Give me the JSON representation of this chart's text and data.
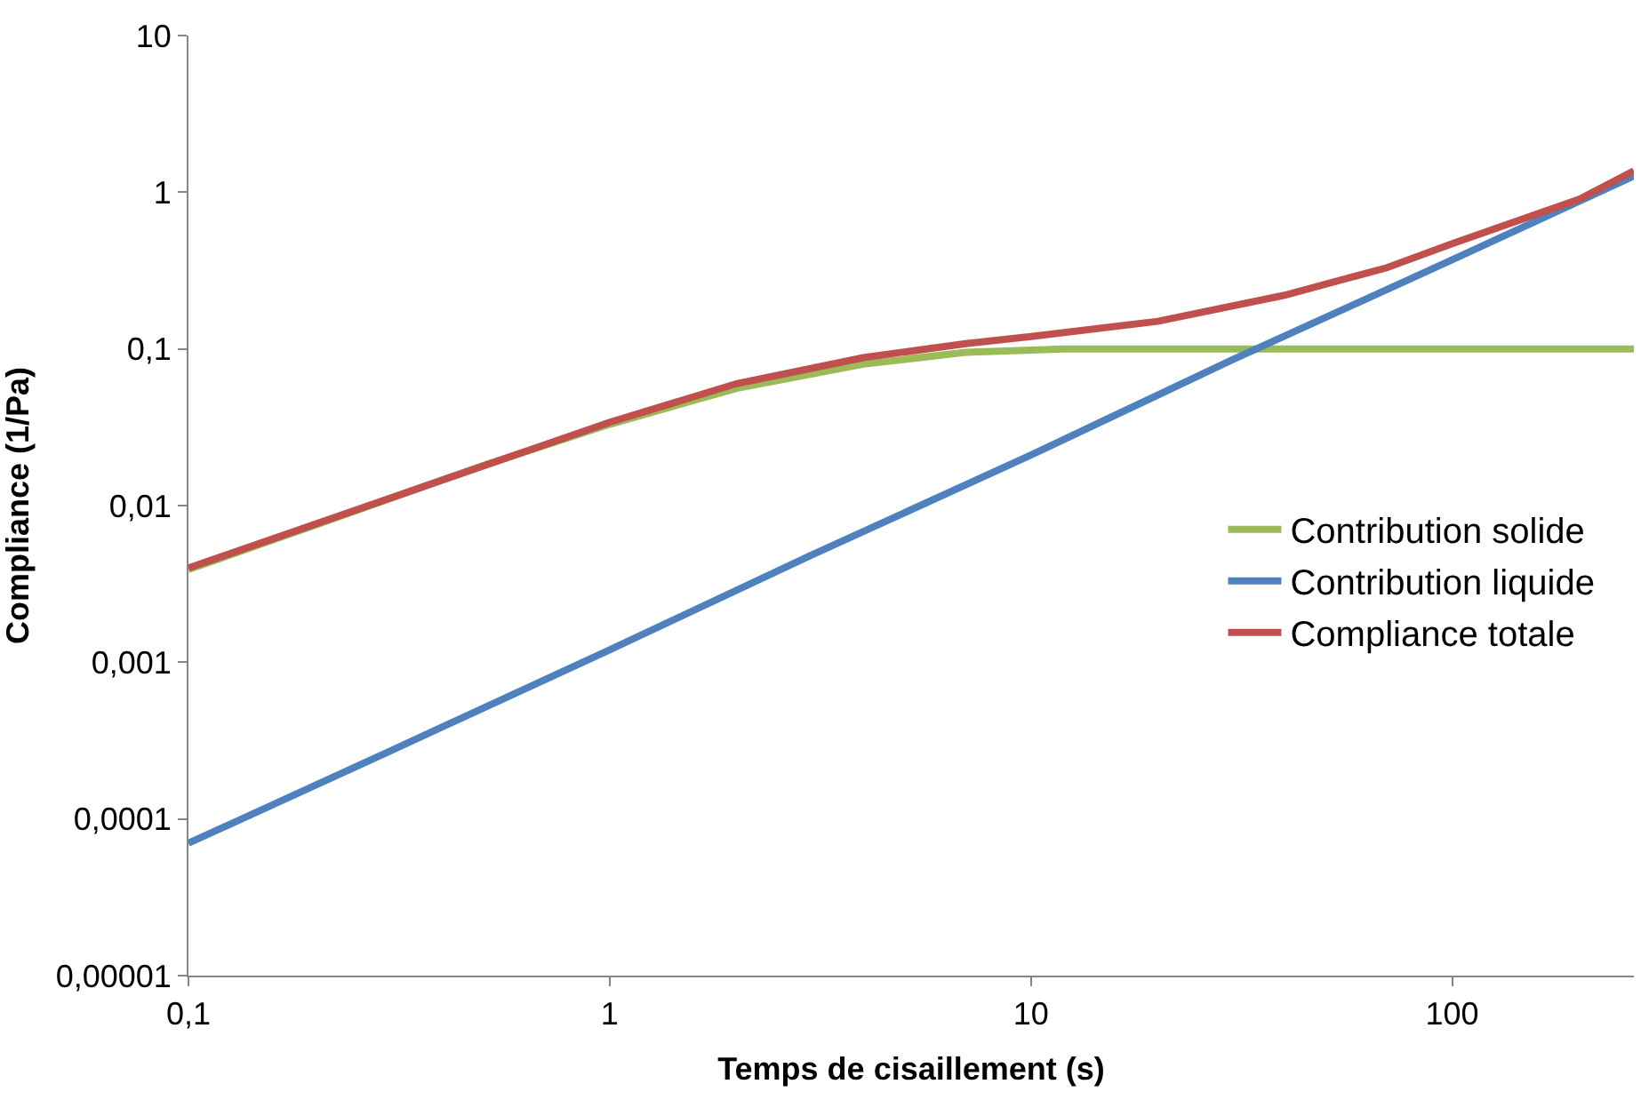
{
  "chart_data": {
    "type": "line",
    "xlabel": "Temps de cisaillement (s)",
    "ylabel": "Compliance (1/Pa)",
    "log": "xy",
    "legend": "right",
    "marker": "none",
    "line_style": "solid",
    "xlim": [
      0.1,
      270
    ],
    "ylim": [
      1e-05,
      10
    ],
    "xticks": [
      {
        "value": 0.1,
        "label": "0,1"
      },
      1,
      10,
      100
    ],
    "yticks": [
      {
        "value": 1e-05,
        "label": "0,00001"
      },
      {
        "value": 0.0001,
        "label": "0,0001"
      },
      {
        "value": 0.001,
        "label": "0,001"
      },
      {
        "value": 0.01,
        "label": "0,01"
      },
      {
        "value": 0.1,
        "label": "0,1"
      },
      1,
      10
    ],
    "series": [
      {
        "name": "Contribution solide",
        "color": "#9bbb59",
        "x": [
          0.1,
          0.2,
          0.5,
          1,
          2,
          4,
          7,
          12,
          270
        ],
        "values": [
          0.0039,
          0.0075,
          0.018,
          0.033,
          0.056,
          0.08,
          0.095,
          0.1,
          0.1
        ]
      },
      {
        "name": "Contribution liquide",
        "color": "#4f81bd",
        "x": [
          0.1,
          0.3,
          1,
          3,
          10,
          30,
          100,
          270
        ],
        "values": [
          7e-05,
          0.00027,
          0.0012,
          0.0048,
          0.021,
          0.085,
          0.37,
          1.27
        ]
      },
      {
        "name": "Compliance totale",
        "color": "#c0504d",
        "x": [
          0.1,
          1,
          2,
          4,
          7,
          10,
          20,
          40,
          70,
          100,
          200,
          270
        ],
        "values": [
          0.004,
          0.034,
          0.06,
          0.088,
          0.108,
          0.12,
          0.15,
          0.22,
          0.33,
          0.47,
          0.9,
          1.37
        ]
      }
    ]
  }
}
